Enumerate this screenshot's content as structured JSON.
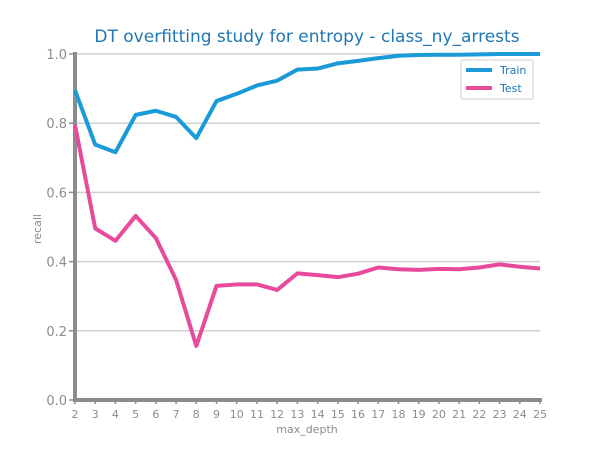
{
  "chart_data": {
    "type": "line",
    "title": "DT overfitting study for entropy - class_ny_arrests",
    "xlabel": "max_depth",
    "ylabel": "recall",
    "x": [
      2,
      3,
      4,
      5,
      6,
      7,
      8,
      9,
      10,
      11,
      12,
      13,
      14,
      15,
      16,
      17,
      18,
      19,
      20,
      21,
      22,
      23,
      24,
      25
    ],
    "xlim": [
      2,
      25
    ],
    "ylim": [
      0.0,
      1.0
    ],
    "yticks": [
      "0.0",
      "0.2",
      "0.4",
      "0.6",
      "0.8",
      "1.0"
    ],
    "xticks": [
      "2",
      "3",
      "4",
      "5",
      "6",
      "7",
      "8",
      "9",
      "10",
      "11",
      "12",
      "13",
      "14",
      "15",
      "16",
      "17",
      "18",
      "19",
      "20",
      "21",
      "22",
      "23",
      "24",
      "25"
    ],
    "grid": "horizontal",
    "legend_position": "top-right",
    "series": [
      {
        "name": "Train",
        "color": "#1a9bd7",
        "values": [
          0.895,
          0.738,
          0.716,
          0.824,
          0.836,
          0.818,
          0.757,
          0.864,
          0.885,
          0.909,
          0.923,
          0.955,
          0.958,
          0.973,
          0.98,
          0.988,
          0.995,
          0.997,
          0.998,
          0.998,
          0.999,
          1.0,
          1.0,
          1.0
        ]
      },
      {
        "name": "Test",
        "color": "#e84a9c",
        "values": [
          0.795,
          0.496,
          0.46,
          0.532,
          0.468,
          0.347,
          0.156,
          0.33,
          0.334,
          0.334,
          0.318,
          0.366,
          0.361,
          0.355,
          0.365,
          0.383,
          0.378,
          0.376,
          0.379,
          0.378,
          0.383,
          0.392,
          0.385,
          0.38
        ]
      }
    ]
  }
}
